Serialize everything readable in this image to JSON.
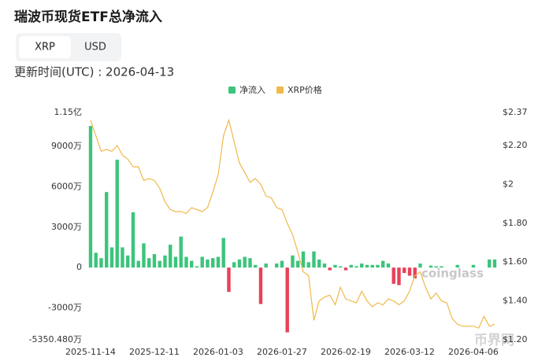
{
  "header": {
    "title": "瑞波币现货ETF总净流入",
    "tabs": [
      "XRP",
      "USD"
    ],
    "update_time": "更新时间(UTC) : 2026-04-13"
  },
  "chart_data": {
    "type": "bar-line",
    "categories": [
      "2025-11-14",
      null,
      null,
      null,
      null,
      null,
      null,
      null,
      null,
      null,
      null,
      null,
      "2025-12-11",
      null,
      null,
      null,
      null,
      null,
      null,
      null,
      null,
      null,
      null,
      null,
      "2026-01-03",
      null,
      null,
      null,
      null,
      null,
      null,
      null,
      null,
      null,
      null,
      null,
      "2026-01-27",
      null,
      null,
      null,
      null,
      null,
      null,
      null,
      null,
      null,
      null,
      null,
      "2026-02-19",
      null,
      null,
      null,
      null,
      null,
      null,
      null,
      null,
      null,
      null,
      null,
      "2026-03-12",
      null,
      null,
      null,
      null,
      null,
      null,
      null,
      null,
      null,
      null,
      null,
      "2026-04-06",
      null,
      null,
      null,
      null
    ],
    "series": [
      {
        "name": "净流入",
        "color": "#3cc47c",
        "negative_color": "#e8415a",
        "values": [
          10500,
          1100,
          700,
          5600,
          1500,
          8000,
          1500,
          900,
          4100,
          500,
          1800,
          700,
          1000,
          500,
          900,
          1700,
          800,
          2300,
          800,
          500,
          100,
          800,
          600,
          700,
          800,
          2200,
          -1800,
          400,
          600,
          800,
          700,
          200,
          -2700,
          300,
          0,
          300,
          500,
          -4800,
          900,
          500,
          1200,
          400,
          1200,
          600,
          300,
          -200,
          200,
          100,
          -200,
          200,
          100,
          300,
          200,
          200,
          200,
          500,
          300,
          -1200,
          -1300,
          -400,
          -600,
          -800,
          300,
          0,
          150,
          100,
          100,
          0,
          0,
          200,
          0,
          0,
          200,
          0,
          0,
          600,
          600
        ]
      },
      {
        "name": "XRP价格",
        "color": "#efb94b",
        "axis": "y2",
        "values": [
          2.33,
          2.25,
          2.17,
          2.18,
          2.17,
          2.2,
          2.15,
          2.13,
          2.09,
          2.09,
          2.02,
          2.03,
          2.02,
          1.98,
          1.91,
          1.87,
          1.86,
          1.86,
          1.85,
          1.88,
          1.87,
          1.86,
          1.88,
          1.96,
          2.05,
          2.25,
          2.33,
          2.22,
          2.11,
          2.06,
          2.01,
          2.03,
          2.0,
          1.94,
          1.93,
          1.88,
          1.87,
          1.8,
          1.74,
          1.65,
          1.55,
          1.53,
          1.3,
          1.4,
          1.42,
          1.43,
          1.38,
          1.47,
          1.41,
          1.4,
          1.39,
          1.45,
          1.4,
          1.37,
          1.39,
          1.38,
          1.41,
          1.4,
          1.38,
          1.4,
          1.45,
          1.53,
          1.55,
          1.47,
          1.41,
          1.44,
          1.4,
          1.39,
          1.31,
          1.28,
          1.27,
          1.27,
          1.27,
          1.26,
          1.32,
          1.27,
          1.28
        ]
      }
    ],
    "ylim": [
      -5350.48,
      11500
    ],
    "yticks": [
      {
        "value": 11500,
        "label": "1.15亿"
      },
      {
        "value": 9000,
        "label": "9000万"
      },
      {
        "value": 6000,
        "label": "6000万"
      },
      {
        "value": 3000,
        "label": "3000万"
      },
      0,
      {
        "value": -3000,
        "label": "-3000万"
      },
      {
        "value": -5350.48,
        "label": "-5350.480万"
      }
    ],
    "y2lim": [
      1.2,
      2.37
    ],
    "y2ticks": [
      {
        "value": 2.37,
        "label": "$2.37"
      },
      {
        "value": 2.2,
        "label": "$2.20"
      },
      {
        "value": 2,
        "label": "$2"
      },
      {
        "value": 1.8,
        "label": "$1.80"
      },
      {
        "value": 1.6,
        "label": "$1.60"
      },
      {
        "value": 1.4,
        "label": "$1.40"
      },
      {
        "value": 1.2,
        "label": "$1.20"
      }
    ],
    "grid": false,
    "legend": "top",
    "watermarks": [
      "coinglass",
      "币界网"
    ]
  }
}
